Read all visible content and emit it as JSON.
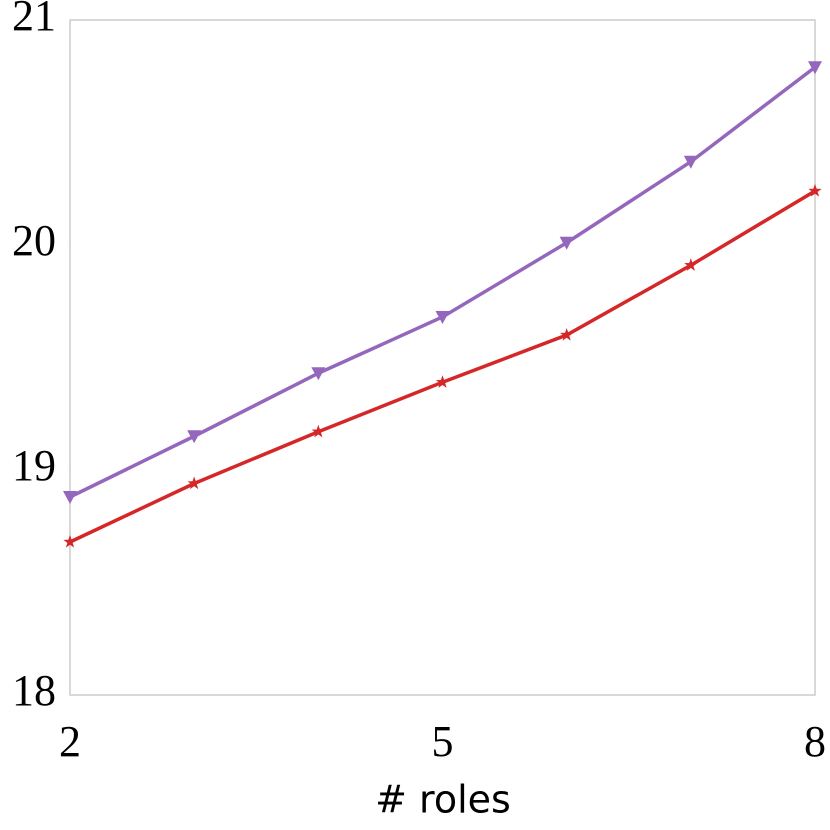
{
  "chart_data": {
    "type": "line",
    "xlabel": "# roles",
    "x": [
      2,
      3,
      4,
      5,
      6,
      7,
      8
    ],
    "series": [
      {
        "color": "#9467bd",
        "marker": "triangle-down",
        "values": [
          18.88,
          19.15,
          19.43,
          19.68,
          20.01,
          20.37,
          20.79
        ]
      },
      {
        "color": "#d62728",
        "marker": "star",
        "values": [
          18.68,
          18.94,
          19.17,
          19.39,
          19.6,
          19.91,
          20.24
        ]
      }
    ],
    "xlim": [
      2,
      8
    ],
    "xticks": [
      2,
      5,
      8
    ],
    "ylim": [
      18,
      21
    ],
    "yticks": [
      18,
      19,
      20,
      21
    ],
    "grid": false
  }
}
